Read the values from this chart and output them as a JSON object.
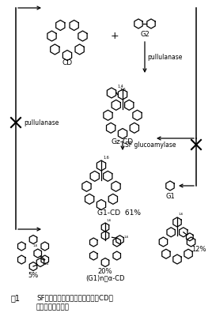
{
  "title_fig": "図1",
  "bg_color": "#ffffff",
  "labels": {
    "CD": "CD",
    "G2": "G2",
    "pullulanase_right": "pullulanase",
    "Gz_CD": "Gz-CD",
    "SF_glucoamylase": "SF glucoamylase",
    "G1_CD": "G1-CD  61%",
    "G1": "G1",
    "pullulanase_left": "pullulanase",
    "pct_5": "5%",
    "pct_20": "20%",
    "pct_12": "12%",
    "Gn_label": "(G1)n・α-CD",
    "caption1": "SF酵素を用いたグルコシル分岐CDの",
    "caption2": "新規製法スキーム"
  },
  "figsize": [
    2.68,
    3.96
  ],
  "dpi": 100
}
